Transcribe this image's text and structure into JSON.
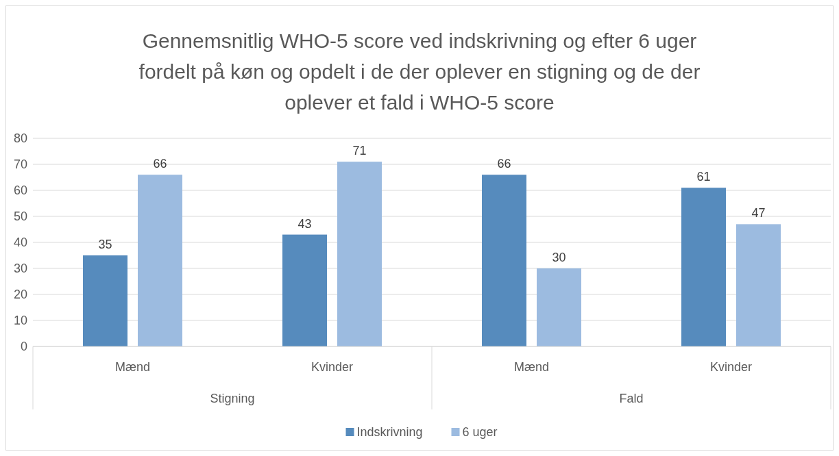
{
  "chart_data": {
    "type": "bar",
    "title": "Gennemsnitlig WHO-5 score ved indskrivning og efter 6 uger fordelt på køn og opdelt i de der oplever en stigning og de der oplever et fald i WHO-5 score",
    "categories": [
      "Mænd",
      "Kvinder",
      "Mænd",
      "Kvinder"
    ],
    "series": [
      {
        "name": "Indskrivning",
        "color": "#568bbd",
        "values": [
          35,
          43,
          66,
          61
        ]
      },
      {
        "name": "6 uger",
        "color": "#9cbbe0",
        "values": [
          66,
          71,
          30,
          47
        ]
      }
    ],
    "annotations": [
      "Stigning",
      "Fald"
    ],
    "ylim": [
      0,
      80
    ],
    "yticks": [
      0,
      10,
      20,
      30,
      40,
      50,
      60,
      70,
      80
    ],
    "grid": "y",
    "legend": "bottom",
    "data_labels": true
  }
}
